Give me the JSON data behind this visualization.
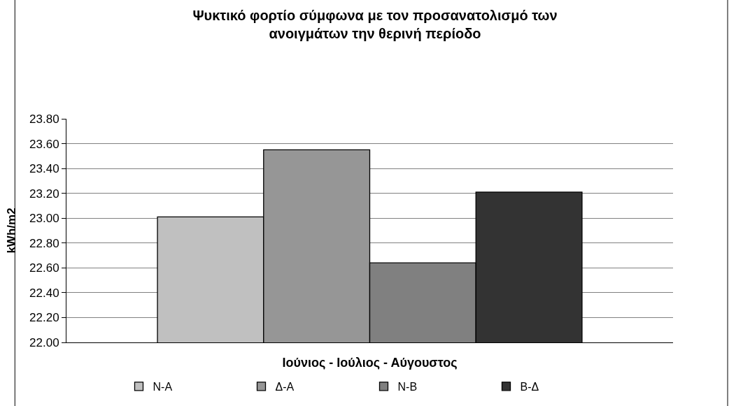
{
  "chart_data": {
    "type": "bar",
    "title": "Ψυκτικό φορτίο σύμφωνα με τον προσανατολισμό των ανοιγμάτων την θερινή περίοδο",
    "xlabel": "Ιούνιος - Ιούλιος - Αύγουστος",
    "ylabel": "kWh/m2",
    "categories": [
      null
    ],
    "series": [
      {
        "name": "N-A",
        "color": "#c0c0c0",
        "values": [
          23.01
        ]
      },
      {
        "name": "Δ-A",
        "color": "#969696",
        "values": [
          23.55
        ]
      },
      {
        "name": "N-B",
        "color": "#808080",
        "values": [
          22.64
        ]
      },
      {
        "name": "B-Δ",
        "color": "#333333",
        "values": [
          23.21
        ]
      }
    ],
    "ylim": [
      22.0,
      23.8
    ],
    "yticks": [
      {
        "value": 22.0,
        "label": "22.00"
      },
      {
        "value": 22.2,
        "label": "22.20"
      },
      {
        "value": 22.4,
        "label": "22.40"
      },
      {
        "value": 22.6,
        "label": "22.60"
      },
      {
        "value": 22.8,
        "label": "22.80"
      },
      {
        "value": 23.0,
        "label": "23.00"
      },
      {
        "value": 23.2,
        "label": "23.20"
      },
      {
        "value": 23.4,
        "label": "23.40"
      },
      {
        "value": 23.6,
        "label": "23.60"
      },
      {
        "value": 23.8,
        "label": "23.80"
      }
    ],
    "grid": "y",
    "legend": "bottom"
  }
}
